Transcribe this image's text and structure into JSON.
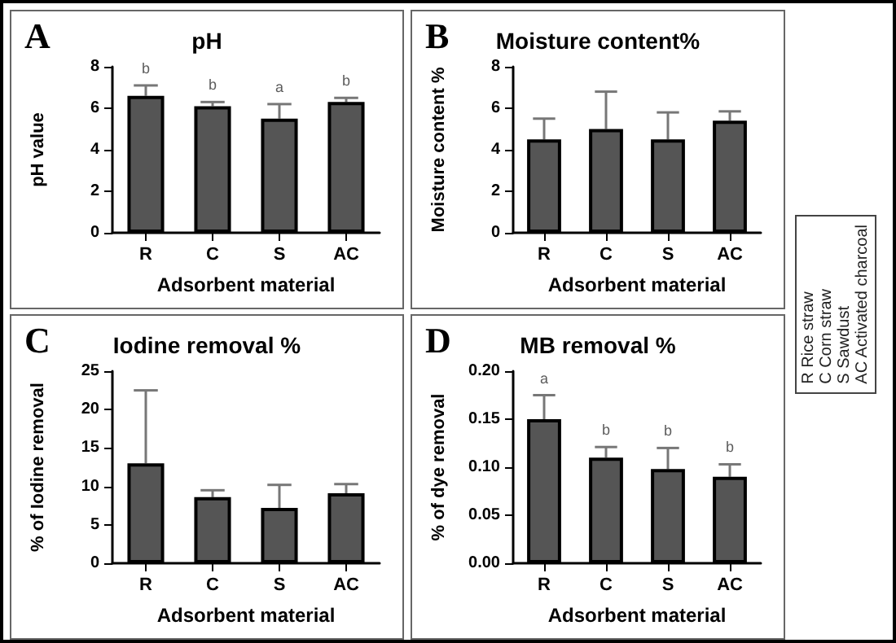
{
  "chart_data": [
    {
      "type": "bar",
      "title": "pH",
      "xlabel": "Adsorbent material",
      "ylabel": "pH value",
      "categories": [
        "R",
        "C",
        "S",
        "AC"
      ],
      "color": "#555555",
      "values": [
        6.6,
        6.1,
        5.5,
        6.3
      ],
      "errors": [
        [
          6.6,
          7.1
        ],
        [
          6.1,
          6.3
        ],
        [
          5.5,
          6.2
        ],
        [
          6.3,
          6.5
        ]
      ],
      "ylim": [
        0,
        8
      ],
      "yticks": [
        0,
        2,
        4,
        6,
        8
      ],
      "grid": false,
      "annotations": [
        "A",
        "b",
        "b",
        "a",
        "b"
      ]
    },
    {
      "type": "bar",
      "title": "Moisture content%",
      "xlabel": "Adsorbent material",
      "ylabel": "Moisture content %",
      "categories": [
        "R",
        "C",
        "S",
        "AC"
      ],
      "color": "#555555",
      "values": [
        4.5,
        5.0,
        4.5,
        5.4
      ],
      "errors": [
        [
          4.5,
          5.5
        ],
        [
          5.0,
          6.8
        ],
        [
          4.5,
          5.8
        ],
        [
          5.4,
          5.85
        ]
      ],
      "ylim": [
        0,
        8
      ],
      "yticks": [
        0,
        2,
        4,
        6,
        8
      ],
      "grid": false,
      "annotations": [
        "B"
      ]
    },
    {
      "type": "bar",
      "title": "Iodine removal %",
      "xlabel": "Adsorbent material",
      "ylabel": "% of Iodine removal",
      "categories": [
        "R",
        "C",
        "S",
        "AC"
      ],
      "color": "#555555",
      "values": [
        13,
        8.6,
        7.2,
        9.1
      ],
      "errors": [
        [
          13,
          22.5
        ],
        [
          8.6,
          9.5
        ],
        [
          7.2,
          10.2
        ],
        [
          9.1,
          10.3
        ]
      ],
      "ylim": [
        0,
        25
      ],
      "yticks": [
        0,
        5,
        10,
        15,
        20,
        25
      ],
      "grid": false,
      "annotations": [
        "C"
      ]
    },
    {
      "type": "bar",
      "title": "MB removal %",
      "xlabel": "Adsorbent material",
      "ylabel": "% of dye removal",
      "categories": [
        "R",
        "C",
        "S",
        "AC"
      ],
      "color": "#555555",
      "values": [
        0.15,
        0.11,
        0.098,
        0.09
      ],
      "errors": [
        [
          0.15,
          0.175
        ],
        [
          0.11,
          0.121
        ],
        [
          0.098,
          0.12
        ],
        [
          0.09,
          0.103
        ]
      ],
      "ylim": [
        0,
        0.2
      ],
      "yticks": [
        {
          "value": 0,
          "label": "0.00"
        },
        {
          "value": 0.05,
          "label": "0.05"
        },
        {
          "value": 0.1,
          "label": "0.10"
        },
        {
          "value": 0.15,
          "label": "0.15"
        },
        {
          "value": 0.2,
          "label": "0.20"
        }
      ],
      "grid": false,
      "annotations": [
        "D",
        "a",
        "b",
        "b",
        "b"
      ]
    },
    {
      "type": "other",
      "annotations": [
        "R Rice straw",
        "C Corn straw",
        "S Sawdust",
        "AC Activated charcoal"
      ]
    }
  ]
}
